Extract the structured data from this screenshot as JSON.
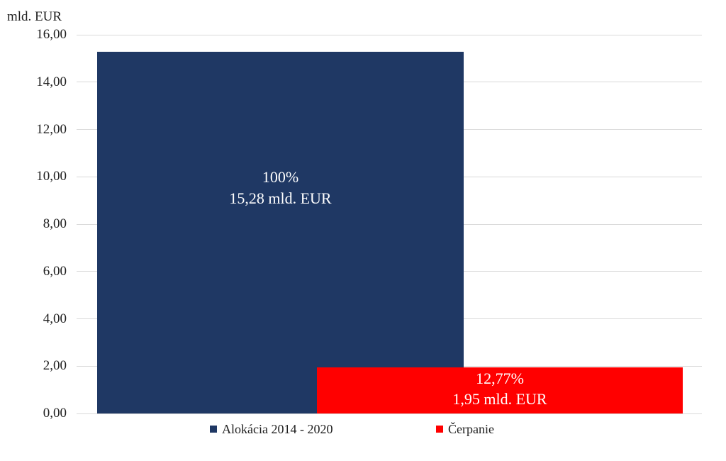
{
  "chart_data": {
    "type": "bar",
    "title": "",
    "xlabel": "",
    "ylabel": "mld. EUR",
    "ylim": [
      0,
      16
    ],
    "ytick_step": 2,
    "yticks": [
      "16,00",
      "14,00",
      "12,00",
      "10,00",
      "8,00",
      "6,00",
      "4,00",
      "2,00",
      "0,00"
    ],
    "grid": true,
    "gridline_color": "#d9d9d9",
    "legend_position": "bottom",
    "series": [
      {
        "name": "Alokácia 2014 - 2020",
        "value": 15.28,
        "percent_label": "100%",
        "value_label": "15,28 mld. EUR",
        "color": "#1f3864",
        "label_color": "#ffffff"
      },
      {
        "name": "Čerpanie",
        "value": 1.95,
        "percent_label": "12,77%",
        "value_label": "1,95 mld. EUR",
        "color": "#ff0000",
        "label_color": "#ffffff"
      }
    ]
  }
}
